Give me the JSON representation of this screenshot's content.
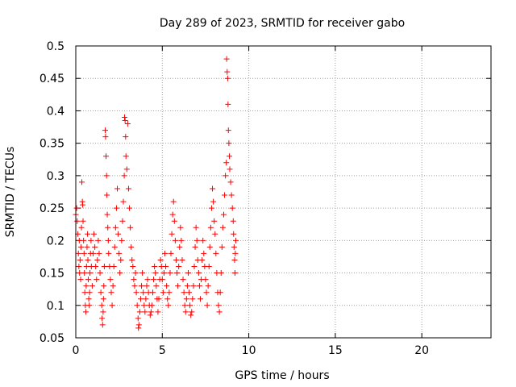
{
  "chart_data": {
    "type": "scatter",
    "title": "Day 289 of 2023, SRMTID for receiver gabo",
    "xlabel": "GPS time / hours",
    "ylabel": "SRMTID / TECUs",
    "xlim": [
      0,
      24
    ],
    "ylim": [
      0.05,
      0.5
    ],
    "x_ticks": [
      0,
      5,
      10,
      15,
      20
    ],
    "x_tick_labels": [
      "0",
      "5",
      "10",
      "15",
      "20"
    ],
    "y_ticks": [
      0.05,
      0.1,
      0.15,
      0.2,
      0.25,
      0.3,
      0.35,
      0.4,
      0.45,
      0.5
    ],
    "y_tick_labels": [
      "0.05",
      "0.1",
      "0.15",
      "0.2",
      "0.25",
      "0.3",
      "0.35",
      "0.4",
      "0.45",
      "0.5"
    ],
    "grid": true,
    "marker": "+",
    "point_color": "#ff0000",
    "series": [
      {
        "name": "SRMTID",
        "points": [
          [
            0.0,
            0.24
          ],
          [
            0.05,
            0.25
          ],
          [
            0.08,
            0.23
          ],
          [
            0.12,
            0.21
          ],
          [
            0.15,
            0.18
          ],
          [
            0.18,
            0.16
          ],
          [
            0.2,
            0.2
          ],
          [
            0.22,
            0.15
          ],
          [
            0.25,
            0.17
          ],
          [
            0.28,
            0.14
          ],
          [
            0.3,
            0.19
          ],
          [
            0.33,
            0.22
          ],
          [
            0.35,
            0.29
          ],
          [
            0.38,
            0.26
          ],
          [
            0.4,
            0.255
          ],
          [
            0.42,
            0.23
          ],
          [
            0.45,
            0.2
          ],
          [
            0.48,
            0.18
          ],
          [
            0.5,
            0.15
          ],
          [
            0.52,
            0.12
          ],
          [
            0.55,
            0.1
          ],
          [
            0.58,
            0.09
          ],
          [
            0.6,
            0.13
          ],
          [
            0.62,
            0.16
          ],
          [
            0.65,
            0.19
          ],
          [
            0.68,
            0.21
          ],
          [
            0.7,
            0.17
          ],
          [
            0.72,
            0.14
          ],
          [
            0.75,
            0.11
          ],
          [
            0.78,
            0.1
          ],
          [
            0.8,
            0.12
          ],
          [
            0.82,
            0.15
          ],
          [
            0.85,
            0.18
          ],
          [
            0.88,
            0.2
          ],
          [
            0.9,
            0.16
          ],
          [
            0.95,
            0.13
          ],
          [
            1.0,
            0.18
          ],
          [
            1.05,
            0.21
          ],
          [
            1.1,
            0.19
          ],
          [
            1.15,
            0.16
          ],
          [
            1.2,
            0.14
          ],
          [
            1.25,
            0.17
          ],
          [
            1.3,
            0.2
          ],
          [
            1.35,
            0.18
          ],
          [
            1.4,
            0.15
          ],
          [
            1.45,
            0.12
          ],
          [
            1.5,
            0.1
          ],
          [
            1.52,
            0.08
          ],
          [
            1.55,
            0.07
          ],
          [
            1.58,
            0.09
          ],
          [
            1.6,
            0.11
          ],
          [
            1.62,
            0.13
          ],
          [
            1.65,
            0.16
          ],
          [
            1.7,
            0.37
          ],
          [
            1.72,
            0.36
          ],
          [
            1.75,
            0.33
          ],
          [
            1.78,
            0.3
          ],
          [
            1.8,
            0.27
          ],
          [
            1.82,
            0.24
          ],
          [
            1.85,
            0.22
          ],
          [
            1.88,
            0.2
          ],
          [
            1.9,
            0.18
          ],
          [
            1.95,
            0.16
          ],
          [
            2.0,
            0.14
          ],
          [
            2.05,
            0.12
          ],
          [
            2.1,
            0.1
          ],
          [
            2.15,
            0.13
          ],
          [
            2.2,
            0.16
          ],
          [
            2.25,
            0.19
          ],
          [
            2.3,
            0.22
          ],
          [
            2.35,
            0.25
          ],
          [
            2.4,
            0.28
          ],
          [
            2.45,
            0.21
          ],
          [
            2.5,
            0.18
          ],
          [
            2.55,
            0.15
          ],
          [
            2.6,
            0.17
          ],
          [
            2.65,
            0.2
          ],
          [
            2.7,
            0.23
          ],
          [
            2.75,
            0.26
          ],
          [
            2.8,
            0.3
          ],
          [
            2.82,
            0.39
          ],
          [
            2.85,
            0.385
          ],
          [
            2.88,
            0.36
          ],
          [
            2.9,
            0.33
          ],
          [
            2.95,
            0.31
          ],
          [
            3.0,
            0.38
          ],
          [
            3.05,
            0.28
          ],
          [
            3.1,
            0.25
          ],
          [
            3.15,
            0.22
          ],
          [
            3.2,
            0.19
          ],
          [
            3.25,
            0.17
          ],
          [
            3.3,
            0.16
          ],
          [
            3.35,
            0.14
          ],
          [
            3.4,
            0.13
          ],
          [
            3.45,
            0.15
          ],
          [
            3.5,
            0.12
          ],
          [
            3.55,
            0.1
          ],
          [
            3.6,
            0.08
          ],
          [
            3.62,
            0.065
          ],
          [
            3.65,
            0.07
          ],
          [
            3.7,
            0.09
          ],
          [
            3.75,
            0.11
          ],
          [
            3.8,
            0.13
          ],
          [
            3.85,
            0.15
          ],
          [
            3.9,
            0.12
          ],
          [
            3.95,
            0.1
          ],
          [
            4.0,
            0.09
          ],
          [
            4.05,
            0.11
          ],
          [
            4.1,
            0.13
          ],
          [
            4.15,
            0.14
          ],
          [
            4.2,
            0.12
          ],
          [
            4.25,
            0.1
          ],
          [
            4.3,
            0.085
          ],
          [
            4.35,
            0.09
          ],
          [
            4.4,
            0.1
          ],
          [
            4.45,
            0.12
          ],
          [
            4.5,
            0.14
          ],
          [
            4.55,
            0.16
          ],
          [
            4.6,
            0.15
          ],
          [
            4.65,
            0.13
          ],
          [
            4.7,
            0.11
          ],
          [
            4.75,
            0.09
          ],
          [
            4.8,
            0.11
          ],
          [
            4.85,
            0.14
          ],
          [
            4.9,
            0.17
          ],
          [
            4.95,
            0.16
          ],
          [
            5.0,
            0.14
          ],
          [
            5.05,
            0.12
          ],
          [
            5.1,
            0.15
          ],
          [
            5.15,
            0.18
          ],
          [
            5.2,
            0.16
          ],
          [
            5.25,
            0.13
          ],
          [
            5.3,
            0.11
          ],
          [
            5.35,
            0.1
          ],
          [
            5.4,
            0.12
          ],
          [
            5.45,
            0.15
          ],
          [
            5.5,
            0.18
          ],
          [
            5.55,
            0.21
          ],
          [
            5.6,
            0.24
          ],
          [
            5.65,
            0.26
          ],
          [
            5.7,
            0.23
          ],
          [
            5.75,
            0.2
          ],
          [
            5.8,
            0.17
          ],
          [
            5.85,
            0.15
          ],
          [
            5.9,
            0.13
          ],
          [
            5.95,
            0.16
          ],
          [
            6.0,
            0.19
          ],
          [
            6.05,
            0.22
          ],
          [
            6.1,
            0.2
          ],
          [
            6.15,
            0.17
          ],
          [
            6.2,
            0.14
          ],
          [
            6.25,
            0.12
          ],
          [
            6.3,
            0.1
          ],
          [
            6.35,
            0.09
          ],
          [
            6.4,
            0.11
          ],
          [
            6.45,
            0.13
          ],
          [
            6.5,
            0.15
          ],
          [
            6.55,
            0.12
          ],
          [
            6.6,
            0.1
          ],
          [
            6.65,
            0.085
          ],
          [
            6.7,
            0.09
          ],
          [
            6.75,
            0.11
          ],
          [
            6.8,
            0.13
          ],
          [
            6.85,
            0.16
          ],
          [
            6.9,
            0.19
          ],
          [
            6.95,
            0.22
          ],
          [
            7.0,
            0.2
          ],
          [
            7.05,
            0.17
          ],
          [
            7.1,
            0.15
          ],
          [
            7.15,
            0.13
          ],
          [
            7.2,
            0.11
          ],
          [
            7.25,
            0.14
          ],
          [
            7.3,
            0.17
          ],
          [
            7.35,
            0.2
          ],
          [
            7.4,
            0.18
          ],
          [
            7.45,
            0.16
          ],
          [
            7.5,
            0.14
          ],
          [
            7.55,
            0.12
          ],
          [
            7.6,
            0.1
          ],
          [
            7.65,
            0.13
          ],
          [
            7.7,
            0.16
          ],
          [
            7.75,
            0.19
          ],
          [
            7.8,
            0.22
          ],
          [
            7.85,
            0.25
          ],
          [
            7.9,
            0.28
          ],
          [
            7.95,
            0.26
          ],
          [
            8.0,
            0.23
          ],
          [
            8.05,
            0.21
          ],
          [
            8.1,
            0.18
          ],
          [
            8.15,
            0.15
          ],
          [
            8.2,
            0.12
          ],
          [
            8.25,
            0.1
          ],
          [
            8.3,
            0.09
          ],
          [
            8.35,
            0.12
          ],
          [
            8.4,
            0.15
          ],
          [
            8.45,
            0.19
          ],
          [
            8.5,
            0.22
          ],
          [
            8.55,
            0.24
          ],
          [
            8.6,
            0.27
          ],
          [
            8.65,
            0.3
          ],
          [
            8.7,
            0.32
          ],
          [
            8.72,
            0.48
          ],
          [
            8.75,
            0.46
          ],
          [
            8.78,
            0.45
          ],
          [
            8.8,
            0.41
          ],
          [
            8.82,
            0.37
          ],
          [
            8.85,
            0.35
          ],
          [
            8.88,
            0.33
          ],
          [
            8.9,
            0.31
          ],
          [
            8.95,
            0.29
          ],
          [
            9.0,
            0.27
          ],
          [
            9.05,
            0.25
          ],
          [
            9.1,
            0.23
          ],
          [
            9.12,
            0.21
          ],
          [
            9.15,
            0.19
          ],
          [
            9.18,
            0.17
          ],
          [
            9.2,
            0.15
          ],
          [
            9.22,
            0.18
          ],
          [
            9.25,
            0.2
          ]
        ]
      }
    ]
  }
}
